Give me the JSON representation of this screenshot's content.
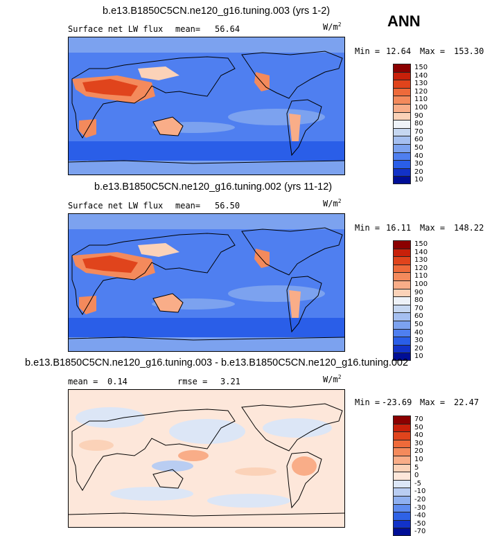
{
  "season": "ANN",
  "panels": [
    {
      "title": "b.e13.B1850C5CN.ne120_g16.tuning.003 (yrs 1-2)",
      "left_label": "Surface net LW flux",
      "stat_label": "mean=",
      "stat_value": "56.64",
      "units": "W/m",
      "units_sup": "2",
      "min_label": "Min =",
      "min_value": "12.64",
      "max_label": "Max =",
      "max_value": "153.30",
      "levels": [
        "150",
        "140",
        "130",
        "120",
        "110",
        "100",
        "90",
        "80",
        "70",
        "60",
        "50",
        "40",
        "30",
        "20",
        "10"
      ],
      "colors": [
        "#8b0000",
        "#c8200a",
        "#e0441c",
        "#ee6a3a",
        "#f48a5c",
        "#f9ad88",
        "#fbd2b8",
        "#eef2f8",
        "#c6d7f1",
        "#a5bff0",
        "#7ca2ef",
        "#4f7ff0",
        "#2a5ee8",
        "#1232c8",
        "#000e96"
      ]
    },
    {
      "title": "b.e13.B1850C5CN.ne120_g16.tuning.002 (yrs 11-12)",
      "left_label": "Surface net LW flux",
      "stat_label": "mean=",
      "stat_value": "56.50",
      "units": "W/m",
      "units_sup": "2",
      "min_label": "Min =",
      "min_value": "16.11",
      "max_label": "Max =",
      "max_value": "148.22",
      "levels": [
        "150",
        "140",
        "130",
        "120",
        "110",
        "100",
        "90",
        "80",
        "70",
        "60",
        "50",
        "40",
        "30",
        "20",
        "10"
      ],
      "colors": [
        "#8b0000",
        "#c8200a",
        "#e0441c",
        "#ee6a3a",
        "#f48a5c",
        "#f9ad88",
        "#fbd2b8",
        "#eef2f8",
        "#c6d7f1",
        "#a5bff0",
        "#7ca2ef",
        "#4f7ff0",
        "#2a5ee8",
        "#1232c8",
        "#000e96"
      ]
    },
    {
      "title": "b.e13.B1850C5CN.ne120_g16.tuning.003 - b.e13.B1850C5CN.ne120_g16.tuning.002",
      "left_label": "mean =",
      "left_value": "0.14",
      "stat_label": "rmse =",
      "stat_value": "3.21",
      "units": "W/m",
      "units_sup": "2",
      "min_label": "Min =",
      "min_value": "-23.69",
      "max_label": "Max =",
      "max_value": "22.47",
      "levels": [
        "70",
        "50",
        "40",
        "30",
        "20",
        "10",
        "5",
        "0",
        "-5",
        "-10",
        "-20",
        "-30",
        "-40",
        "-50",
        "-70"
      ],
      "colors": [
        "#8b0000",
        "#c8200a",
        "#e0441c",
        "#ee6a3a",
        "#f48a5c",
        "#f9ad88",
        "#fbd2b8",
        "#fde7da",
        "#dce6f6",
        "#b9cdf2",
        "#8fb0f0",
        "#5f8cef",
        "#2f62e6",
        "#1232c8",
        "#000e96"
      ]
    }
  ]
}
